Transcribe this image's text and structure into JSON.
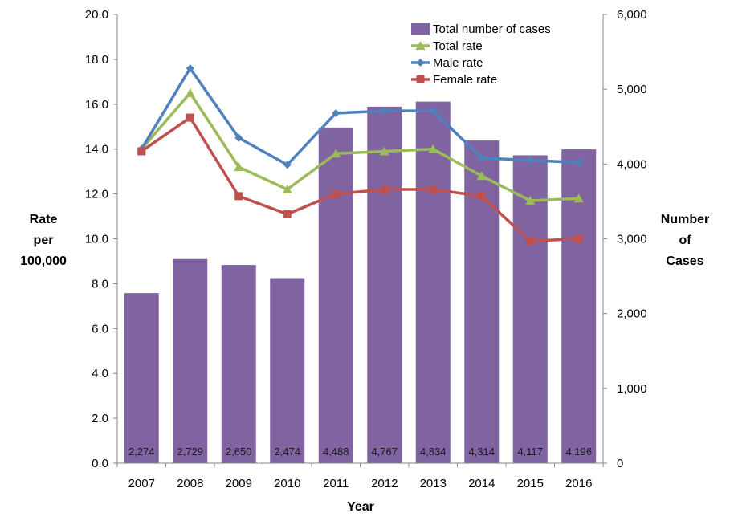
{
  "chart_data": {
    "type": "bar+line",
    "xlabel": "Year",
    "ylabel_left": [
      "Rate",
      "per",
      "100,000"
    ],
    "ylabel_right": [
      "Number",
      "of",
      "Cases"
    ],
    "categories": [
      "2007",
      "2008",
      "2009",
      "2010",
      "2011",
      "2012",
      "2013",
      "2014",
      "2015",
      "2016"
    ],
    "left_axis": {
      "min": 0,
      "max": 20,
      "step": 2,
      "tick_labels": [
        "0.0",
        "2.0",
        "4.0",
        "6.0",
        "8.0",
        "10.0",
        "12.0",
        "14.0",
        "16.0",
        "18.0",
        "20.0"
      ]
    },
    "right_axis": {
      "min": 0,
      "max": 6000,
      "step": 1000,
      "tick_labels": [
        "0",
        "1,000",
        "2,000",
        "3,000",
        "4,000",
        "5,000",
        "6,000"
      ]
    },
    "bars": {
      "name": "Total number of cases",
      "axis": "right",
      "color": "#8064A2",
      "values": [
        2274,
        2729,
        2650,
        2474,
        4488,
        4767,
        4834,
        4314,
        4117,
        4196
      ],
      "labels": [
        "2,274",
        "2,729",
        "2,650",
        "2,474",
        "4,488",
        "4,767",
        "4,834",
        "4,314",
        "4,117",
        "4,196"
      ]
    },
    "series": [
      {
        "name": "Total rate",
        "axis": "left",
        "color": "#9BBB59",
        "marker": "triangle",
        "values": [
          14.0,
          16.5,
          13.2,
          12.2,
          13.8,
          13.9,
          14.0,
          12.8,
          11.7,
          11.8
        ]
      },
      {
        "name": "Male rate",
        "axis": "left",
        "color": "#4F81BD",
        "marker": "diamond",
        "values": [
          14.0,
          17.6,
          14.5,
          13.3,
          15.6,
          15.7,
          15.7,
          13.6,
          13.5,
          13.4
        ]
      },
      {
        "name": "Female rate",
        "axis": "left",
        "color": "#C0504D",
        "marker": "square",
        "values": [
          13.9,
          15.4,
          11.9,
          11.1,
          12.0,
          12.2,
          12.2,
          11.9,
          9.9,
          10.0
        ]
      }
    ],
    "legend": "top-right",
    "grid": false
  }
}
